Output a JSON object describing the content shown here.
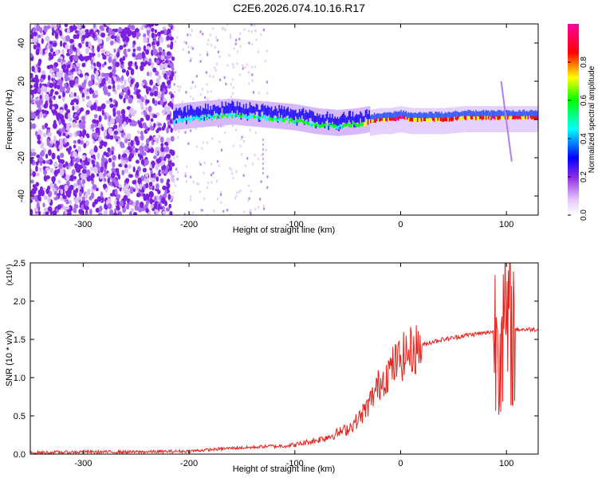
{
  "title": "C2E6.2026.074.10.16.R17",
  "chart_data": [
    {
      "type": "heatmap",
      "title": "C2E6.2026.074.10.16.R17",
      "xlabel": "Height of straight line (km)",
      "ylabel": "Frequency (Hz)",
      "xlim": [
        -350,
        130
      ],
      "ylim": [
        -50,
        50
      ],
      "x_ticks": [
        -300,
        -200,
        -100,
        0,
        100
      ],
      "y_ticks": [
        -40,
        -20,
        0,
        20,
        40
      ],
      "x_tick_labels": [
        "-300",
        "-200",
        "-100",
        "0",
        "100"
      ],
      "y_tick_labels": [
        "-40",
        "-20",
        "0",
        "20",
        "40"
      ],
      "colorbar": {
        "label": "Normalized spectral amplitude",
        "range": [
          0.0,
          1.0
        ],
        "ticks": [
          0.0,
          0.2,
          0.4,
          0.6,
          0.8
        ],
        "tick_labels": [
          "0.0",
          "0.2",
          "0.4",
          "0.6",
          "0.8"
        ],
        "colormap": [
          "#ffffff",
          "#e8c6ff",
          "#8a2be2",
          "#0000ff",
          "#00ffff",
          "#00ff00",
          "#ffff00",
          "#ff0000",
          "#ff00a0"
        ]
      },
      "ridge": {
        "x": [
          -215,
          -200,
          -180,
          -160,
          -140,
          -120,
          -100,
          -80,
          -60,
          -40,
          -30,
          -20,
          -10,
          0,
          10,
          20,
          40,
          60,
          80,
          100,
          120,
          130
        ],
        "center_freq": [
          0,
          1,
          2,
          3,
          2,
          1,
          0,
          -2,
          -3,
          -2,
          -1,
          0,
          0,
          1,
          0,
          0,
          0,
          1,
          1,
          1,
          1,
          1
        ],
        "peak_amplitude": [
          0.35,
          0.4,
          0.45,
          0.45,
          0.45,
          0.45,
          0.48,
          0.5,
          0.5,
          0.6,
          0.75,
          0.8,
          0.85,
          0.85,
          0.8,
          0.75,
          0.75,
          0.78,
          0.8,
          0.8,
          0.8,
          0.8
        ]
      },
      "noise_region": {
        "x_range": [
          -350,
          -215
        ],
        "y_range": [
          -50,
          50
        ],
        "amplitude": 0.18
      }
    },
    {
      "type": "line",
      "xlabel": "Height of straight line (km)",
      "ylabel": "SNR (10 * v/v)",
      "y_multiplier_label": "(x10⁴)",
      "xlim": [
        -350,
        130
      ],
      "ylim": [
        0,
        2.5
      ],
      "x_ticks": [
        -300,
        -200,
        -100,
        0,
        100
      ],
      "y_ticks": [
        0.0,
        0.5,
        1.0,
        1.5,
        2.0,
        2.5
      ],
      "x_tick_labels": [
        "-300",
        "-200",
        "-100",
        "0",
        "100"
      ],
      "y_tick_labels": [
        "0.0",
        "0.5",
        "1.0",
        "1.5",
        "2.0",
        "2.5"
      ],
      "line_color": "#e8201a",
      "series": [
        {
          "x": [
            -350,
            -300,
            -250,
            -200,
            -180,
            -160,
            -140,
            -120,
            -100,
            -90,
            -80,
            -70,
            -60,
            -50,
            -40,
            -35,
            -30,
            -25,
            -20,
            -15,
            -10,
            -5,
            0,
            5,
            10,
            15,
            20,
            30,
            40,
            50,
            60,
            70,
            80,
            85,
            90,
            95,
            100,
            105,
            110,
            115,
            120,
            130
          ],
          "y": [
            0.01,
            0.02,
            0.02,
            0.03,
            0.05,
            0.07,
            0.08,
            0.1,
            0.12,
            0.15,
            0.18,
            0.22,
            0.27,
            0.33,
            0.45,
            0.55,
            0.65,
            0.8,
            0.92,
            1.02,
            1.1,
            1.18,
            1.25,
            1.3,
            1.35,
            1.38,
            1.42,
            1.47,
            1.5,
            1.52,
            1.55,
            1.57,
            1.58,
            1.6,
            1.6,
            1.62,
            1.6,
            1.62,
            1.63,
            1.63,
            1.63,
            1.63
          ]
        }
      ]
    }
  ]
}
